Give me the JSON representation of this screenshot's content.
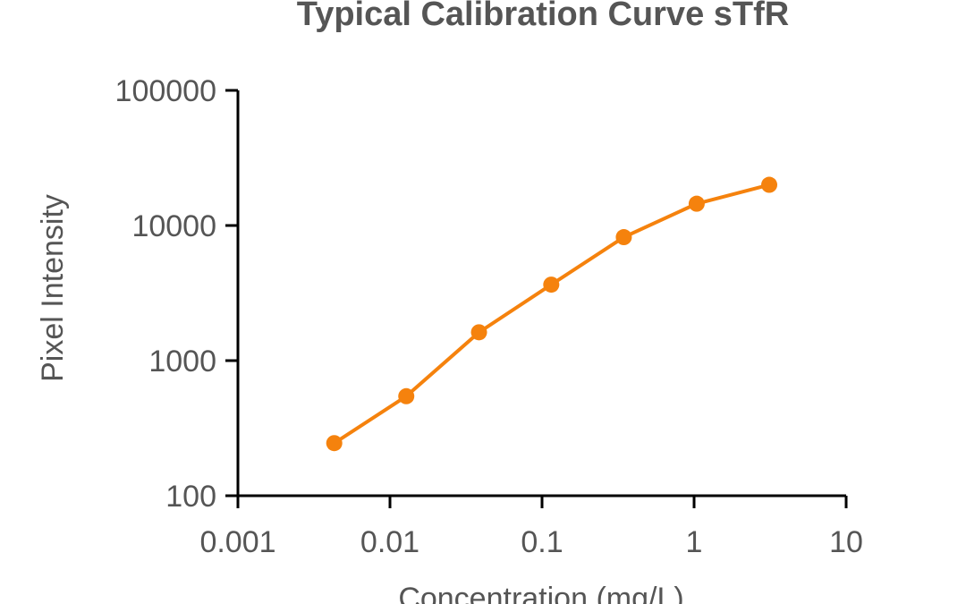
{
  "chart_data": {
    "type": "line",
    "title": "Typical Calibration Curve sTfR",
    "xlabel": "Concentration  (mg/L)",
    "ylabel": "Pixel Intensity",
    "x_scale": "log",
    "y_scale": "log",
    "xlim": [
      0.001,
      10
    ],
    "ylim": [
      100,
      100000
    ],
    "x_ticks": [
      0.001,
      0.01,
      0.1,
      1,
      10
    ],
    "x_tick_labels": [
      "0.001",
      "0.01",
      "0.1",
      "1",
      "10"
    ],
    "y_ticks": [
      100,
      1000,
      10000,
      100000
    ],
    "y_tick_labels": [
      "100",
      "1000",
      "10000",
      "100000"
    ],
    "grid": false,
    "series": [
      {
        "color": "#F5820D",
        "x": [
          0.0043,
          0.0128,
          0.0385,
          0.115,
          0.345,
          1.04,
          3.12
        ],
        "y": [
          245,
          545,
          1620,
          3650,
          8200,
          14500,
          20000
        ]
      }
    ]
  }
}
